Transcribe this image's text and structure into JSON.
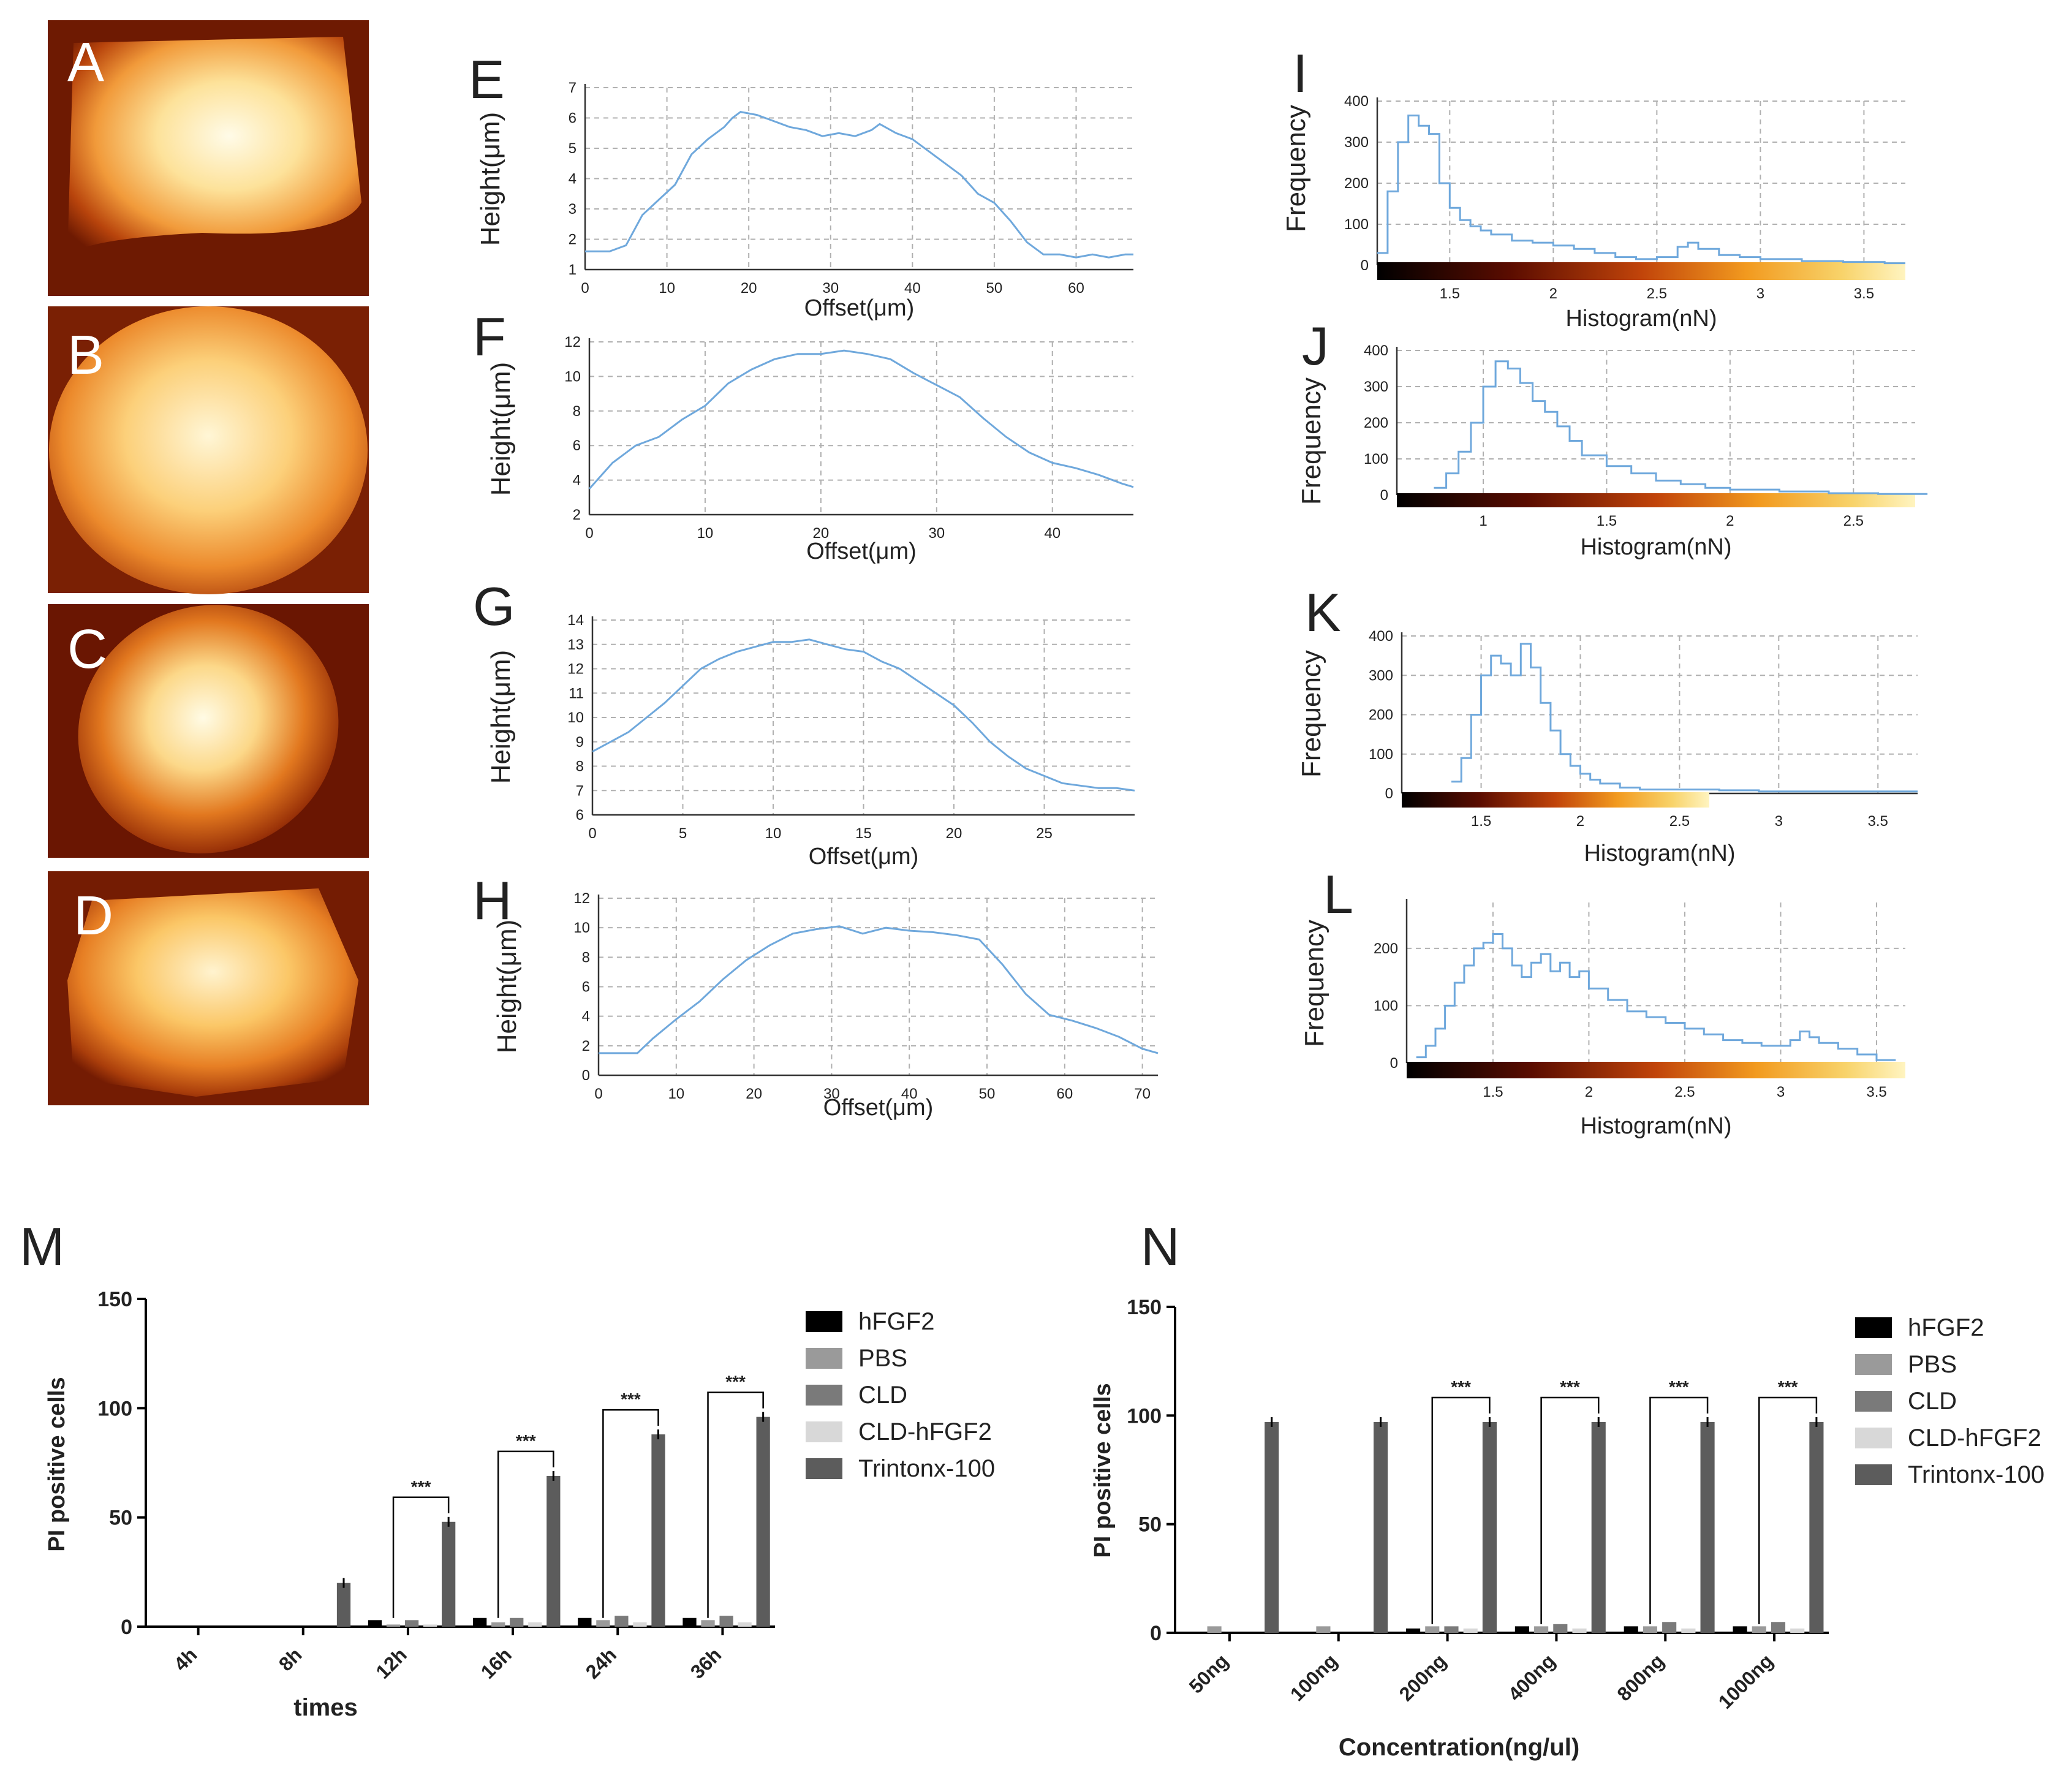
{
  "colors": {
    "profile_line": "#6fa8dc",
    "grid": "#b0b0b0",
    "axis": "#333333",
    "hFGF2": "#000000",
    "PBS": "#9a9a9a",
    "CLD": "#7a7a7a",
    "CLD-hFGF2": "#d8d8d8",
    "Trintonx-100": "#5c5c5c"
  },
  "figure": {
    "image_panels": [
      {
        "label": "A",
        "description": "AFM height image, flat rectangular cell"
      },
      {
        "label": "B",
        "description": "AFM height image, rounded cell"
      },
      {
        "label": "C",
        "description": "AFM height image, oval cell"
      },
      {
        "label": "D",
        "description": "AFM height image, irregular cell"
      }
    ]
  },
  "chart_data": [
    {
      "panel": "E",
      "type": "line",
      "xlabel": "Offset(μm)",
      "ylabel": "Height(μm)",
      "xlim": [
        0,
        67
      ],
      "ylim": [
        1,
        7
      ],
      "xticks": [
        0,
        10,
        20,
        30,
        40,
        50,
        60
      ],
      "yticks": [
        1,
        2,
        3,
        4,
        5,
        6,
        7
      ],
      "x": [
        0,
        3,
        5,
        7,
        9,
        11,
        13,
        15,
        17,
        18,
        19,
        21,
        23,
        25,
        27,
        29,
        31,
        33,
        35,
        36,
        38,
        40,
        42,
        44,
        46,
        48,
        50,
        52,
        54,
        56,
        58,
        60,
        62,
        64,
        66,
        67
      ],
      "y": [
        1.6,
        1.6,
        1.8,
        2.8,
        3.3,
        3.8,
        4.8,
        5.3,
        5.7,
        6.0,
        6.2,
        6.1,
        5.9,
        5.7,
        5.6,
        5.4,
        5.5,
        5.4,
        5.6,
        5.8,
        5.5,
        5.3,
        4.9,
        4.5,
        4.1,
        3.5,
        3.2,
        2.6,
        1.9,
        1.5,
        1.5,
        1.4,
        1.5,
        1.4,
        1.5,
        1.5
      ]
    },
    {
      "panel": "F",
      "type": "line",
      "xlabel": "Offset(μm)",
      "ylabel": "Height(μm)",
      "xlim": [
        0,
        47
      ],
      "ylim": [
        2,
        12
      ],
      "xticks": [
        0,
        10,
        20,
        30,
        40
      ],
      "yticks": [
        2,
        4,
        6,
        8,
        10,
        12
      ],
      "x": [
        0,
        2,
        4,
        6,
        8,
        10,
        12,
        14,
        16,
        18,
        20,
        22,
        24,
        26,
        28,
        30,
        32,
        34,
        36,
        38,
        40,
        42,
        44,
        46,
        47
      ],
      "y": [
        3.5,
        5.0,
        6.0,
        6.5,
        7.5,
        8.3,
        9.6,
        10.4,
        11.0,
        11.3,
        11.3,
        11.5,
        11.3,
        11.0,
        10.2,
        9.5,
        8.8,
        7.6,
        6.5,
        5.6,
        5.0,
        4.7,
        4.3,
        3.8,
        3.6
      ]
    },
    {
      "panel": "G",
      "type": "line",
      "xlabel": "Offset(μm)",
      "ylabel": "Height(μm)",
      "xlim": [
        0,
        30
      ],
      "ylim": [
        6,
        14
      ],
      "xticks": [
        0,
        5,
        10,
        15,
        20,
        25
      ],
      "yticks": [
        6,
        7,
        8,
        9,
        10,
        11,
        12,
        13,
        14
      ],
      "x": [
        0,
        1,
        2,
        3,
        4,
        5,
        6,
        7,
        8,
        9,
        10,
        11,
        12,
        13,
        14,
        15,
        16,
        17,
        18,
        19,
        20,
        21,
        22,
        23,
        24,
        25,
        26,
        27,
        28,
        29,
        30
      ],
      "y": [
        8.6,
        9.0,
        9.4,
        10.0,
        10.6,
        11.3,
        12.0,
        12.4,
        12.7,
        12.9,
        13.1,
        13.1,
        13.2,
        13.0,
        12.8,
        12.7,
        12.3,
        12.0,
        11.5,
        11.0,
        10.5,
        9.8,
        9.0,
        8.4,
        7.9,
        7.6,
        7.3,
        7.2,
        7.1,
        7.1,
        7.0
      ]
    },
    {
      "panel": "H",
      "type": "line",
      "xlabel": "Offset(μm)",
      "ylabel": "Height(μm)",
      "xlim": [
        0,
        72
      ],
      "ylim": [
        0,
        12
      ],
      "xticks": [
        0,
        10,
        20,
        30,
        40,
        50,
        60,
        70
      ],
      "yticks": [
        0,
        2,
        4,
        6,
        8,
        10,
        12
      ],
      "x": [
        0,
        3,
        5,
        7,
        10,
        13,
        16,
        19,
        22,
        25,
        28,
        31,
        34,
        37,
        40,
        43,
        46,
        49,
        52,
        55,
        58,
        61,
        64,
        67,
        70,
        72
      ],
      "y": [
        1.5,
        1.5,
        1.5,
        2.5,
        3.8,
        5.0,
        6.5,
        7.8,
        8.8,
        9.6,
        9.9,
        10.1,
        9.6,
        10.0,
        9.8,
        9.7,
        9.5,
        9.2,
        7.5,
        5.5,
        4.1,
        3.7,
        3.2,
        2.6,
        1.8,
        1.5
      ]
    },
    {
      "panel": "I",
      "type": "histogram",
      "xlabel": "Histogram(nN)",
      "ylabel": "Frequency",
      "xlim": [
        1.15,
        3.7
      ],
      "ylim": [
        0,
        400
      ],
      "xticks": [
        1.5,
        2.0,
        2.5,
        3.0,
        3.5
      ],
      "yticks": [
        0,
        100,
        200,
        300,
        400
      ],
      "x": [
        1.15,
        1.2,
        1.25,
        1.3,
        1.35,
        1.4,
        1.45,
        1.5,
        1.55,
        1.6,
        1.65,
        1.7,
        1.8,
        1.9,
        2.0,
        2.1,
        2.2,
        2.3,
        2.4,
        2.5,
        2.6,
        2.65,
        2.7,
        2.8,
        2.9,
        3.0,
        3.2,
        3.4,
        3.6,
        3.65
      ],
      "y": [
        30,
        180,
        300,
        365,
        340,
        320,
        200,
        140,
        110,
        95,
        85,
        75,
        60,
        55,
        48,
        40,
        30,
        20,
        15,
        20,
        45,
        55,
        40,
        25,
        20,
        15,
        10,
        8,
        5,
        5
      ]
    },
    {
      "panel": "J",
      "type": "histogram",
      "xlabel": "Histogram(nN)",
      "ylabel": "Frequency",
      "xlim": [
        0.65,
        2.75
      ],
      "ylim": [
        0,
        400
      ],
      "xticks": [
        1.0,
        1.5,
        2.0,
        2.5
      ],
      "yticks": [
        0,
        100,
        200,
        300,
        400
      ],
      "x": [
        0.8,
        0.85,
        0.9,
        0.95,
        1.0,
        1.05,
        1.1,
        1.15,
        1.2,
        1.25,
        1.3,
        1.35,
        1.4,
        1.5,
        1.6,
        1.7,
        1.8,
        1.9,
        2.0,
        2.2,
        2.4,
        2.6
      ],
      "y": [
        20,
        60,
        120,
        200,
        300,
        370,
        350,
        310,
        260,
        230,
        190,
        150,
        110,
        80,
        60,
        40,
        30,
        20,
        15,
        10,
        5,
        3
      ]
    },
    {
      "panel": "K",
      "type": "histogram",
      "xlabel": "Histogram(nN)",
      "ylabel": "Frequency",
      "xlim": [
        1.1,
        3.7
      ],
      "ylim": [
        0,
        400
      ],
      "xticks": [
        1.5,
        2.0,
        2.5,
        3.0,
        3.5
      ],
      "yticks": [
        0,
        100,
        200,
        300,
        400
      ],
      "x": [
        1.35,
        1.4,
        1.45,
        1.5,
        1.55,
        1.6,
        1.65,
        1.7,
        1.75,
        1.8,
        1.85,
        1.9,
        1.95,
        2.0,
        2.05,
        2.1,
        2.2,
        2.3,
        2.5,
        2.7,
        2.9,
        3.1,
        3.3,
        3.5,
        3.6
      ],
      "y": [
        30,
        90,
        200,
        300,
        350,
        330,
        300,
        380,
        320,
        230,
        160,
        100,
        70,
        50,
        35,
        25,
        15,
        10,
        10,
        8,
        5,
        5,
        5,
        5,
        5
      ]
    },
    {
      "panel": "L",
      "type": "histogram",
      "xlabel": "Histogram(nN)",
      "ylabel": "Frequency",
      "xlim": [
        1.05,
        3.65
      ],
      "ylim": [
        0,
        280
      ],
      "xticks": [
        1.5,
        2.0,
        2.5,
        3.0,
        3.5
      ],
      "yticks": [
        0,
        100,
        200
      ],
      "x": [
        1.1,
        1.15,
        1.2,
        1.25,
        1.3,
        1.35,
        1.4,
        1.45,
        1.5,
        1.55,
        1.6,
        1.65,
        1.7,
        1.75,
        1.8,
        1.85,
        1.9,
        1.95,
        2.0,
        2.1,
        2.2,
        2.3,
        2.4,
        2.5,
        2.6,
        2.7,
        2.8,
        2.9,
        3.0,
        3.05,
        3.1,
        3.15,
        3.2,
        3.3,
        3.4,
        3.5
      ],
      "y": [
        10,
        30,
        60,
        100,
        140,
        170,
        200,
        210,
        225,
        200,
        170,
        150,
        175,
        190,
        160,
        175,
        150,
        160,
        130,
        110,
        90,
        80,
        70,
        60,
        50,
        40,
        35,
        30,
        30,
        40,
        55,
        45,
        35,
        25,
        15,
        5
      ]
    },
    {
      "panel": "M",
      "type": "bar",
      "title": "",
      "xlabel": "times",
      "ylabel": "PI positive cells",
      "ylim": [
        0,
        150
      ],
      "yticks": [
        0,
        50,
        100,
        150
      ],
      "categories": [
        "4h",
        "8h",
        "12h",
        "16h",
        "24h",
        "36h"
      ],
      "series": [
        {
          "name": "hFGF2",
          "values": [
            0,
            0,
            3,
            4,
            4,
            4
          ]
        },
        {
          "name": "PBS",
          "values": [
            0,
            0,
            1,
            2,
            3,
            3
          ]
        },
        {
          "name": "CLD",
          "values": [
            0,
            0,
            3,
            4,
            5,
            5
          ]
        },
        {
          "name": "CLD-hFGF2",
          "values": [
            0,
            0,
            1,
            2,
            2,
            2
          ]
        },
        {
          "name": "Trintonx-100",
          "values": [
            0,
            20,
            48,
            69,
            88,
            96
          ]
        }
      ],
      "significance": [
        {
          "category": "12h",
          "label": "***"
        },
        {
          "category": "16h",
          "label": "***"
        },
        {
          "category": "24h",
          "label": "***"
        },
        {
          "category": "36h",
          "label": "***"
        }
      ],
      "legend": [
        "hFGF2",
        "PBS",
        "CLD",
        "CLD-hFGF2",
        "Trintonx-100"
      ]
    },
    {
      "panel": "N",
      "type": "bar",
      "title": "",
      "xlabel": "Concentration(ng/ul)",
      "ylabel": "PI positive cells",
      "ylim": [
        0,
        150
      ],
      "yticks": [
        0,
        50,
        100,
        150
      ],
      "categories": [
        "50ng",
        "100ng",
        "200ng",
        "400ng",
        "800ng",
        "1000ng"
      ],
      "series": [
        {
          "name": "hFGF2",
          "values": [
            0,
            0,
            2,
            3,
            3,
            3
          ]
        },
        {
          "name": "PBS",
          "values": [
            3,
            3,
            3,
            3,
            3,
            3
          ]
        },
        {
          "name": "CLD",
          "values": [
            0,
            0,
            3,
            4,
            5,
            5
          ]
        },
        {
          "name": "CLD-hFGF2",
          "values": [
            0,
            0,
            2,
            2,
            2,
            2
          ]
        },
        {
          "name": "Trintonx-100",
          "values": [
            97,
            97,
            97,
            97,
            97,
            97
          ]
        }
      ],
      "significance": [
        {
          "category": "200ng",
          "label": "***"
        },
        {
          "category": "400ng",
          "label": "***"
        },
        {
          "category": "800ng",
          "label": "***"
        },
        {
          "category": "1000ng",
          "label": "***"
        }
      ],
      "legend": [
        "hFGF2",
        "PBS",
        "CLD",
        "CLD-hFGF2",
        "Trintonx-100"
      ]
    }
  ]
}
